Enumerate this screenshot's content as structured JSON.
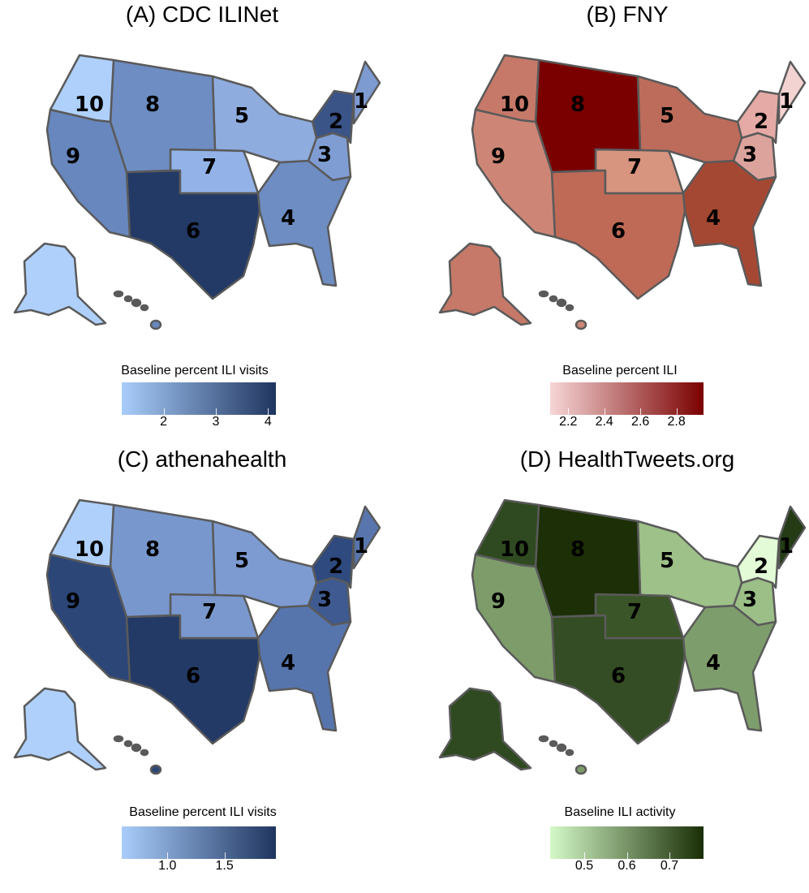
{
  "panels": [
    {
      "title": "(A) CDC ILINet",
      "legend": {
        "title": "Baseline percent ILI visits",
        "gradient": [
          "#a9cdfb",
          "#1f355f"
        ],
        "min": 1.2,
        "max": 4.15,
        "ticks": [
          {
            "value": 2,
            "label": "2"
          },
          {
            "value": 3,
            "label": "3"
          },
          {
            "value": 4,
            "label": "4"
          }
        ]
      },
      "regions": {
        "1": {
          "label": "1",
          "color": "#7d9bd0"
        },
        "2": {
          "label": "2",
          "color": "#3a5488"
        },
        "3": {
          "label": "3",
          "color": "#7f9dd3"
        },
        "4": {
          "label": "4",
          "color": "#6e8dc3"
        },
        "5": {
          "label": "5",
          "color": "#8facdf"
        },
        "6": {
          "label": "6",
          "color": "#233a66"
        },
        "7": {
          "label": "7",
          "color": "#93b3e8"
        },
        "8": {
          "label": "8",
          "color": "#6e8dc2"
        },
        "9": {
          "label": "9",
          "color": "#6787be"
        },
        "10": {
          "label": "10",
          "color": "#afd0fb"
        }
      }
    },
    {
      "title": "(B) FNY",
      "legend": {
        "title": "Baseline percent ILI",
        "gradient": [
          "#f7d6d6",
          "#7a0000"
        ],
        "min": 2.1,
        "max": 2.95,
        "ticks": [
          {
            "value": 2.2,
            "label": "2.2"
          },
          {
            "value": 2.4,
            "label": "2.4"
          },
          {
            "value": 2.6,
            "label": "2.6"
          },
          {
            "value": 2.8,
            "label": "2.8"
          }
        ]
      },
      "regions": {
        "1": {
          "label": "1",
          "color": "#f3d3d2"
        },
        "2": {
          "label": "2",
          "color": "#e5aaa5"
        },
        "3": {
          "label": "3",
          "color": "#dca39d"
        },
        "4": {
          "label": "4",
          "color": "#a54833"
        },
        "5": {
          "label": "5",
          "color": "#bd6c5b"
        },
        "6": {
          "label": "6",
          "color": "#bf6a57"
        },
        "7": {
          "label": "7",
          "color": "#d7947f"
        },
        "8": {
          "label": "8",
          "color": "#7a0000"
        },
        "9": {
          "label": "9",
          "color": "#cd8676"
        },
        "10": {
          "label": "10",
          "color": "#c67968"
        }
      }
    },
    {
      "title": "(C) athenahealth",
      "legend": {
        "title": "Baseline percent ILI visits",
        "gradient": [
          "#a9cdfb",
          "#1f355f"
        ],
        "min": 0.6,
        "max": 1.95,
        "ticks": [
          {
            "value": 1.0,
            "label": "1.0"
          },
          {
            "value": 1.5,
            "label": "1.5"
          }
        ]
      },
      "regions": {
        "1": {
          "label": "1",
          "color": "#5876ad"
        },
        "2": {
          "label": "2",
          "color": "#2f4a7e"
        },
        "3": {
          "label": "3",
          "color": "#3e5a90"
        },
        "4": {
          "label": "4",
          "color": "#5775ad"
        },
        "5": {
          "label": "5",
          "color": "#7d9bd1"
        },
        "6": {
          "label": "6",
          "color": "#233a66"
        },
        "7": {
          "label": "7",
          "color": "#7a98ce"
        },
        "8": {
          "label": "8",
          "color": "#7897cd"
        },
        "9": {
          "label": "9",
          "color": "#2d4678"
        },
        "10": {
          "label": "10",
          "color": "#afd0fb"
        }
      }
    },
    {
      "title": "(D) HealthTweets.org",
      "legend": {
        "title": "Baseline ILI activity",
        "gradient": [
          "#d4f9c8",
          "#1a2e06"
        ],
        "min": 0.42,
        "max": 0.78,
        "ticks": [
          {
            "value": 0.5,
            "label": "0.5"
          },
          {
            "value": 0.6,
            "label": "0.6"
          },
          {
            "value": 0.7,
            "label": "0.7"
          }
        ]
      },
      "regions": {
        "1": {
          "label": "1",
          "color": "#243b16"
        },
        "2": {
          "label": "2",
          "color": "#e3fbd6"
        },
        "3": {
          "label": "3",
          "color": "#9bbf87"
        },
        "4": {
          "label": "4",
          "color": "#7e9d6c"
        },
        "5": {
          "label": "5",
          "color": "#9dc188"
        },
        "6": {
          "label": "6",
          "color": "#344d24"
        },
        "7": {
          "label": "7",
          "color": "#3a5528"
        },
        "8": {
          "label": "8",
          "color": "#1c2f06"
        },
        "9": {
          "label": "9",
          "color": "#7d9c6a"
        },
        "10": {
          "label": "10",
          "color": "#2f4a20"
        }
      }
    }
  ]
}
